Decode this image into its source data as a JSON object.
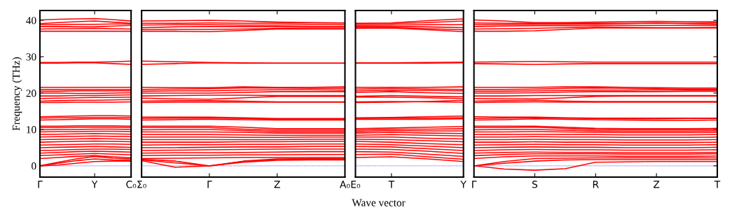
{
  "chart_data": [
    {
      "type": "line",
      "ylabel": "Frequency (THz)",
      "categories": [
        "Γ",
        null,
        null,
        "Y",
        null,
        "C₀"
      ],
      "ylim": [
        -3.1,
        42.7
      ],
      "yticks": [
        0,
        10,
        20,
        30,
        40
      ],
      "color": "#ff0000",
      "line_style": "solid",
      "ref_lines": [
        {
          "axis": "y",
          "value": 0,
          "color": "#0000ff",
          "line_style": "dotted"
        }
      ],
      "series": [
        {
          "values": [
            37,
            37,
            37,
            37,
            37,
            37
          ]
        },
        {
          "values": [
            37.6,
            37.7,
            37.7,
            37.8,
            37.7,
            37.6
          ]
        },
        {
          "values": [
            38.3,
            38.3,
            38.2,
            38.2,
            38.4,
            38.6
          ]
        },
        {
          "values": [
            38.8,
            38.8,
            38.9,
            38.9,
            39.0,
            39.0
          ]
        },
        {
          "values": [
            39.1,
            39.4,
            39.6,
            39.8,
            39.5,
            39.2
          ]
        },
        {
          "values": [
            40.1,
            40.3,
            40.4,
            40.5,
            40.2,
            39.8
          ]
        },
        {
          "values": [
            28.2,
            28.2,
            28.3,
            28.3,
            28.1,
            27.9
          ]
        },
        {
          "values": [
            28.4,
            28.4,
            28.5,
            28.5,
            28.6,
            28.8
          ]
        },
        {
          "values": [
            17.4,
            17.4,
            17.5,
            17.5,
            17.5,
            17.6
          ]
        },
        {
          "values": [
            17.8,
            17.9,
            18.0,
            18.0,
            18.1,
            18.2
          ]
        },
        {
          "values": [
            18.5,
            18.6,
            18.7,
            18.8,
            18.8,
            18.9
          ]
        },
        {
          "values": [
            19.2,
            19.2,
            19.3,
            19.3,
            19.4,
            19.5
          ]
        },
        {
          "values": [
            20.0,
            20.0,
            19.9,
            19.9,
            20.0,
            20.1
          ]
        },
        {
          "values": [
            20.5,
            20.5,
            20.6,
            20.6,
            20.6,
            20.6
          ]
        },
        {
          "values": [
            21.0,
            21.0,
            21.0,
            21.0,
            21.0,
            21.0
          ]
        },
        {
          "values": [
            21.6,
            21.6,
            21.6,
            21.6,
            21.6,
            21.6
          ]
        },
        {
          "values": [
            12.6,
            12.7,
            12.8,
            12.9,
            12.9,
            12.8
          ]
        },
        {
          "values": [
            13.1,
            13.2,
            13.2,
            13.3,
            13.3,
            13.2
          ]
        },
        {
          "values": [
            13.5,
            13.6,
            13.7,
            13.8,
            13.8,
            13.7
          ]
        },
        {
          "values": [
            2.0,
            2.3,
            2.6,
            2.8,
            2.5,
            2.2
          ]
        },
        {
          "values": [
            2.8,
            3.0,
            3.2,
            3.4,
            3.2,
            3.0
          ]
        },
        {
          "values": [
            3.5,
            3.7,
            3.9,
            4.0,
            3.9,
            3.8
          ]
        },
        {
          "values": [
            4.2,
            4.3,
            4.5,
            4.6,
            4.6,
            4.5
          ]
        },
        {
          "values": [
            5.0,
            5.1,
            5.2,
            5.3,
            5.2,
            5.1
          ]
        },
        {
          "values": [
            5.7,
            5.8,
            5.9,
            6.0,
            6.0,
            5.9
          ]
        },
        {
          "values": [
            6.5,
            6.6,
            6.7,
            6.8,
            6.7,
            6.6
          ]
        },
        {
          "values": [
            7.2,
            7.3,
            7.4,
            7.5,
            7.4,
            7.3
          ]
        },
        {
          "values": [
            7.9,
            8.0,
            8.1,
            8.2,
            8.1,
            8.0
          ]
        },
        {
          "values": [
            8.6,
            8.7,
            8.8,
            8.9,
            8.8,
            8.7
          ]
        },
        {
          "values": [
            9.3,
            9.4,
            9.4,
            9.5,
            9.5,
            9.4
          ]
        },
        {
          "values": [
            9.9,
            10.0,
            10.0,
            10.1,
            10.1,
            10.0
          ]
        },
        {
          "values": [
            10.5,
            10.5,
            10.6,
            10.6,
            10.6,
            10.5
          ]
        },
        {
          "values": [
            10.9,
            10.9,
            11.0,
            11.0,
            11.0,
            10.9
          ]
        },
        {
          "values": [
            0,
            0.2,
            0.7,
            1.2,
            1.3,
            1.3
          ]
        },
        {
          "values": [
            0,
            0.7,
            1.4,
            1.9,
            1.6,
            1.5
          ]
        },
        {
          "values": [
            0,
            1.0,
            1.9,
            2.6,
            2.1,
            1.9
          ]
        }
      ]
    },
    {
      "type": "line",
      "categories": [
        "Σ₀",
        null,
        "Γ",
        null,
        "Z",
        null,
        "A₀"
      ],
      "ylim": [
        -3.1,
        42.7
      ],
      "yticks": [
        0,
        10,
        20,
        30,
        40
      ],
      "tick_labels": "x",
      "color": "#ff0000",
      "line_style": "solid",
      "ref_lines": [
        {
          "axis": "y",
          "value": 0,
          "color": "#0000ff",
          "line_style": "dotted"
        }
      ],
      "series": [
        {
          "values": [
            37,
            37,
            36.9,
            37.2,
            37.6,
            37.6,
            37.6
          ]
        },
        {
          "values": [
            37.5,
            37.5,
            37.5,
            37.6,
            37.8,
            37.9,
            37.9
          ]
        },
        {
          "values": [
            38.0,
            38.2,
            38.3,
            38.3,
            38.3,
            38.3,
            38.3
          ]
        },
        {
          "values": [
            38.7,
            38.8,
            38.8,
            38.7,
            38.7,
            38.8,
            38.8
          ]
        },
        {
          "values": [
            39.2,
            39.2,
            39.3,
            39.2,
            39.2,
            39.3,
            39.3
          ]
        },
        {
          "values": [
            39.8,
            39.9,
            40.0,
            39.8,
            39.5,
            39.4,
            39.3
          ]
        },
        {
          "values": [
            27.9,
            28.1,
            28.3,
            28.2,
            28.2,
            28.2,
            28.2
          ]
        },
        {
          "values": [
            28.8,
            28.6,
            28.4,
            28.3,
            28.2,
            28.2,
            28.2
          ]
        },
        {
          "values": [
            17.4,
            17.5,
            17.5,
            17.5,
            17.5,
            17.5,
            17.5
          ]
        },
        {
          "values": [
            17.8,
            17.9,
            17.9,
            17.8,
            17.6,
            17.6,
            17.6
          ]
        },
        {
          "values": [
            18.6,
            18.4,
            18.3,
            18.7,
            19.1,
            19.1,
            19.1
          ]
        },
        {
          "values": [
            19.2,
            19.3,
            19.4,
            19.4,
            19.3,
            19.3,
            19.3
          ]
        },
        {
          "values": [
            20.0,
            20.0,
            20.0,
            20.2,
            20.4,
            20.4,
            20.4
          ]
        },
        {
          "values": [
            20.5,
            20.6,
            20.6,
            20.8,
            20.9,
            20.9,
            20.8
          ]
        },
        {
          "values": [
            21.0,
            21.1,
            21.2,
            21.4,
            21.4,
            21.3,
            21.3
          ]
        },
        {
          "values": [
            21.6,
            21.5,
            21.5,
            21.7,
            21.6,
            21.6,
            21.7
          ]
        },
        {
          "values": [
            12.6,
            12.7,
            12.8,
            12.7,
            12.6,
            12.6,
            12.6
          ]
        },
        {
          "values": [
            13.0,
            13.1,
            13.1,
            13.0,
            12.8,
            12.8,
            12.8
          ]
        },
        {
          "values": [
            13.4,
            13.4,
            13.4,
            13.2,
            13.0,
            13.0,
            13.0
          ]
        },
        {
          "values": [
            2.0,
            2.1,
            2.2,
            2.3,
            2.3,
            2.3,
            2.3
          ]
        },
        {
          "values": [
            2.8,
            2.9,
            2.9,
            3.0,
            3.0,
            3.1,
            3.1
          ]
        },
        {
          "values": [
            3.5,
            3.6,
            3.6,
            3.7,
            3.8,
            3.9,
            3.9
          ]
        },
        {
          "values": [
            4.2,
            4.3,
            4.4,
            4.5,
            4.6,
            4.6,
            4.6
          ]
        },
        {
          "values": [
            5.0,
            5.0,
            5.1,
            5.2,
            5.2,
            5.3,
            5.3
          ]
        },
        {
          "values": [
            5.7,
            5.8,
            5.8,
            5.9,
            5.9,
            6.0,
            6.0
          ]
        },
        {
          "values": [
            6.5,
            6.5,
            6.5,
            6.6,
            6.6,
            6.7,
            6.7
          ]
        },
        {
          "values": [
            7.2,
            7.2,
            7.2,
            7.2,
            7.2,
            7.3,
            7.3
          ]
        },
        {
          "values": [
            7.9,
            7.9,
            7.9,
            7.8,
            7.8,
            7.9,
            7.9
          ]
        },
        {
          "values": [
            8.6,
            8.6,
            8.6,
            8.5,
            8.4,
            8.4,
            8.4
          ]
        },
        {
          "values": [
            9.3,
            9.3,
            9.3,
            9.2,
            9.0,
            9.0,
            9.0
          ]
        },
        {
          "values": [
            9.9,
            10.0,
            10.0,
            9.7,
            9.4,
            9.4,
            9.4
          ]
        },
        {
          "values": [
            10.5,
            10.5,
            10.5,
            10.1,
            9.8,
            9.8,
            9.8
          ]
        },
        {
          "values": [
            10.9,
            10.9,
            10.9,
            10.6,
            10.2,
            10.2,
            10.2
          ]
        },
        {
          "values": [
            1.4,
            -0.4,
            0,
            1.3,
            1.9,
            2.0,
            2.0
          ]
        },
        {
          "values": [
            1.6,
            0.8,
            0,
            1.2,
            1.7,
            1.8,
            1.8
          ]
        },
        {
          "values": [
            1.8,
            1.3,
            0,
            1.0,
            1.5,
            1.6,
            1.6
          ]
        }
      ]
    },
    {
      "type": "line",
      "xlabel": "Wave vector",
      "categories": [
        "E₀",
        "T",
        null,
        "Y"
      ],
      "ylim": [
        -3.1,
        42.7
      ],
      "yticks": [
        0,
        10,
        20,
        30,
        40
      ],
      "tick_labels": "x",
      "color": "#ff0000",
      "line_style": "solid",
      "ref_lines": [
        {
          "axis": "y",
          "value": 0,
          "color": "#0000ff",
          "line_style": "dotted"
        }
      ],
      "series": [
        {
          "values": [
            37.8,
            37.9,
            37.4,
            36.9
          ]
        },
        {
          "values": [
            38.0,
            38.0,
            37.7,
            37.4
          ]
        },
        {
          "values": [
            38.3,
            38.3,
            38.2,
            38.0
          ]
        },
        {
          "values": [
            38.6,
            38.7,
            38.8,
            38.8
          ]
        },
        {
          "values": [
            39.0,
            39.1,
            39.4,
            39.8
          ]
        },
        {
          "values": [
            39.2,
            39.3,
            39.9,
            40.4
          ]
        },
        {
          "values": [
            28.2,
            28.2,
            28.2,
            28.3
          ]
        },
        {
          "values": [
            28.3,
            28.3,
            28.4,
            28.5
          ]
        },
        {
          "values": [
            17.4,
            17.5,
            17.7,
            18.0
          ]
        },
        {
          "values": [
            17.6,
            17.7,
            17.6,
            17.5
          ]
        },
        {
          "values": [
            18.9,
            18.9,
            18.7,
            18.5
          ]
        },
        {
          "values": [
            19.1,
            19.3,
            19.1,
            19.0
          ]
        },
        {
          "values": [
            20.2,
            20.4,
            20.1,
            19.9
          ]
        },
        {
          "values": [
            20.6,
            20.8,
            20.7,
            20.6
          ]
        },
        {
          "values": [
            21.1,
            21.3,
            21.1,
            21.0
          ]
        },
        {
          "values": [
            21.6,
            21.6,
            21.6,
            21.7
          ]
        },
        {
          "values": [
            12.8,
            12.8,
            12.8,
            12.9
          ]
        },
        {
          "values": [
            13.0,
            13.1,
            13.1,
            13.2
          ]
        },
        {
          "values": [
            13.2,
            13.3,
            13.5,
            13.7
          ]
        },
        {
          "values": [
            2.3,
            2.5,
            1.9,
            1.2
          ]
        },
        {
          "values": [
            3.1,
            3.2,
            2.5,
            1.8
          ]
        },
        {
          "values": [
            3.9,
            3.8,
            3.2,
            2.6
          ]
        },
        {
          "values": [
            4.6,
            4.5,
            4.0,
            3.4
          ]
        },
        {
          "values": [
            5.3,
            5.2,
            4.7,
            4.2
          ]
        },
        {
          "values": [
            6.0,
            5.8,
            5.4,
            5.0
          ]
        },
        {
          "values": [
            6.7,
            6.5,
            6.1,
            5.8
          ]
        },
        {
          "values": [
            7.3,
            7.2,
            6.9,
            6.6
          ]
        },
        {
          "values": [
            7.9,
            7.9,
            7.6,
            7.4
          ]
        },
        {
          "values": [
            8.4,
            8.6,
            8.4,
            8.2
          ]
        },
        {
          "values": [
            9.0,
            9.2,
            9.0,
            8.9
          ]
        },
        {
          "values": [
            9.4,
            9.7,
            9.6,
            9.6
          ]
        },
        {
          "values": [
            9.8,
            10.1,
            10.1,
            10.2
          ]
        },
        {
          "values": [
            10.2,
            10.4,
            10.6,
            10.8
          ]
        }
      ]
    },
    {
      "type": "line",
      "categories": [
        "Γ",
        null,
        "S",
        null,
        "R",
        null,
        "Z",
        null,
        "T"
      ],
      "ylim": [
        -3.1,
        42.7
      ],
      "yticks": [
        0,
        10,
        20,
        30,
        40
      ],
      "tick_labels": "x",
      "color": "#ff0000",
      "line_style": "solid",
      "ref_lines": [
        {
          "axis": "y",
          "value": 0,
          "color": "#0000ff",
          "line_style": "dotted"
        }
      ],
      "series": [
        {
          "values": [
            37,
            37,
            37.1,
            37.5,
            37.9,
            37.9,
            37.9,
            37.9,
            37.9
          ]
        },
        {
          "values": [
            37.6,
            37.7,
            37.8,
            38.0,
            38.2,
            38.1,
            38.0,
            38.0,
            38.1
          ]
        },
        {
          "values": [
            38.3,
            38.4,
            38.5,
            38.5,
            38.6,
            38.6,
            38.6,
            38.6,
            38.6
          ]
        },
        {
          "values": [
            38.8,
            38.8,
            38.9,
            38.9,
            39.0,
            39.1,
            39.3,
            39.1,
            38.9
          ]
        },
        {
          "values": [
            39.3,
            39.2,
            39.2,
            39.2,
            39.2,
            39.2,
            39.2,
            39.2,
            39.3
          ]
        },
        {
          "values": [
            40.1,
            39.8,
            39.4,
            39.4,
            39.5,
            39.6,
            39.7,
            39.6,
            39.6
          ]
        },
        {
          "values": [
            28.1,
            28.0,
            27.9,
            28.0,
            28.1,
            28.1,
            28.1,
            28.1,
            28.1
          ]
        },
        {
          "values": [
            28.5,
            28.6,
            28.7,
            28.6,
            28.5,
            28.5,
            28.5,
            28.5,
            28.5
          ]
        },
        {
          "values": [
            17.4,
            17.5,
            17.6,
            17.5,
            17.5,
            17.5,
            17.5,
            17.5,
            17.5
          ]
        },
        {
          "values": [
            17.8,
            17.9,
            18.0,
            17.8,
            17.7,
            17.7,
            17.7,
            17.7,
            17.7
          ]
        },
        {
          "values": [
            18.5,
            18.4,
            18.4,
            18.7,
            19.1,
            19.2,
            19.2,
            19.2,
            19.2
          ]
        },
        {
          "values": [
            19.2,
            19.2,
            19.3,
            19.3,
            19.3,
            19.3,
            19.3,
            19.3,
            19.3
          ]
        },
        {
          "values": [
            20.0,
            20.0,
            20.1,
            20.3,
            20.4,
            20.4,
            20.4,
            20.5,
            20.5
          ]
        },
        {
          "values": [
            20.5,
            20.5,
            20.6,
            20.7,
            20.8,
            20.8,
            20.9,
            20.8,
            20.8
          ]
        },
        {
          "values": [
            21.0,
            21.0,
            21.1,
            21.3,
            21.4,
            21.3,
            21.2,
            21.1,
            21.1
          ]
        },
        {
          "values": [
            21.6,
            21.6,
            21.6,
            21.7,
            21.7,
            21.6,
            21.5,
            21.4,
            21.4
          ]
        },
        {
          "values": [
            12.6,
            12.7,
            12.9,
            12.8,
            12.7,
            12.6,
            12.5,
            12.5,
            12.6
          ]
        },
        {
          "values": [
            13.0,
            13.1,
            13.2,
            13.1,
            13.0,
            12.9,
            12.9,
            13.0,
            13.0
          ]
        },
        {
          "values": [
            13.5,
            13.4,
            13.4,
            13.2,
            13.1,
            13.1,
            13.1,
            13.1,
            13.1
          ]
        },
        {
          "values": [
            2.0,
            2.5,
            2.7,
            2.7,
            2.7,
            2.6,
            2.6,
            2.6,
            2.7
          ]
        },
        {
          "values": [
            2.8,
            3.1,
            3.3,
            3.3,
            3.3,
            3.2,
            3.2,
            3.2,
            3.3
          ]
        },
        {
          "values": [
            3.5,
            3.7,
            3.8,
            3.7,
            3.7,
            3.6,
            3.6,
            3.6,
            3.7
          ]
        },
        {
          "values": [
            4.2,
            4.4,
            4.5,
            4.4,
            4.4,
            4.3,
            4.3,
            4.3,
            4.4
          ]
        },
        {
          "values": [
            5.0,
            5.1,
            5.2,
            5.1,
            5.1,
            5.0,
            5.0,
            5.0,
            5.1
          ]
        },
        {
          "values": [
            5.7,
            5.8,
            5.9,
            5.8,
            5.8,
            5.7,
            5.7,
            5.7,
            5.8
          ]
        },
        {
          "values": [
            6.5,
            6.5,
            6.6,
            6.5,
            6.5,
            6.4,
            6.4,
            6.4,
            6.5
          ]
        },
        {
          "values": [
            7.2,
            7.2,
            7.3,
            7.2,
            7.2,
            7.1,
            7.1,
            7.1,
            7.2
          ]
        },
        {
          "values": [
            7.9,
            7.9,
            8.0,
            7.9,
            7.9,
            7.8,
            7.8,
            7.8,
            7.9
          ]
        },
        {
          "values": [
            8.6,
            8.6,
            8.7,
            8.6,
            8.6,
            8.5,
            8.5,
            8.5,
            8.6
          ]
        },
        {
          "values": [
            9.3,
            9.3,
            9.4,
            9.3,
            9.2,
            9.1,
            9.1,
            9.1,
            9.2
          ]
        },
        {
          "values": [
            9.9,
            10.0,
            10.0,
            9.8,
            9.6,
            9.5,
            9.5,
            9.5,
            9.6
          ]
        },
        {
          "values": [
            10.5,
            10.5,
            10.6,
            10.3,
            10.0,
            9.9,
            9.9,
            9.9,
            10.0
          ]
        },
        {
          "values": [
            10.9,
            10.9,
            10.9,
            10.6,
            10.3,
            10.2,
            10.2,
            10.2,
            10.3
          ]
        },
        {
          "values": [
            0,
            -0.9,
            -1.2,
            -0.8,
            1.0,
            1.1,
            1.2,
            1.2,
            1.2
          ]
        },
        {
          "values": [
            0,
            0.7,
            1.3,
            1.6,
            1.7,
            1.7,
            1.7,
            1.7,
            1.7
          ]
        },
        {
          "values": [
            0,
            1.2,
            2.0,
            2.1,
            2.2,
            2.2,
            2.2,
            2.2,
            2.2
          ]
        }
      ]
    }
  ]
}
